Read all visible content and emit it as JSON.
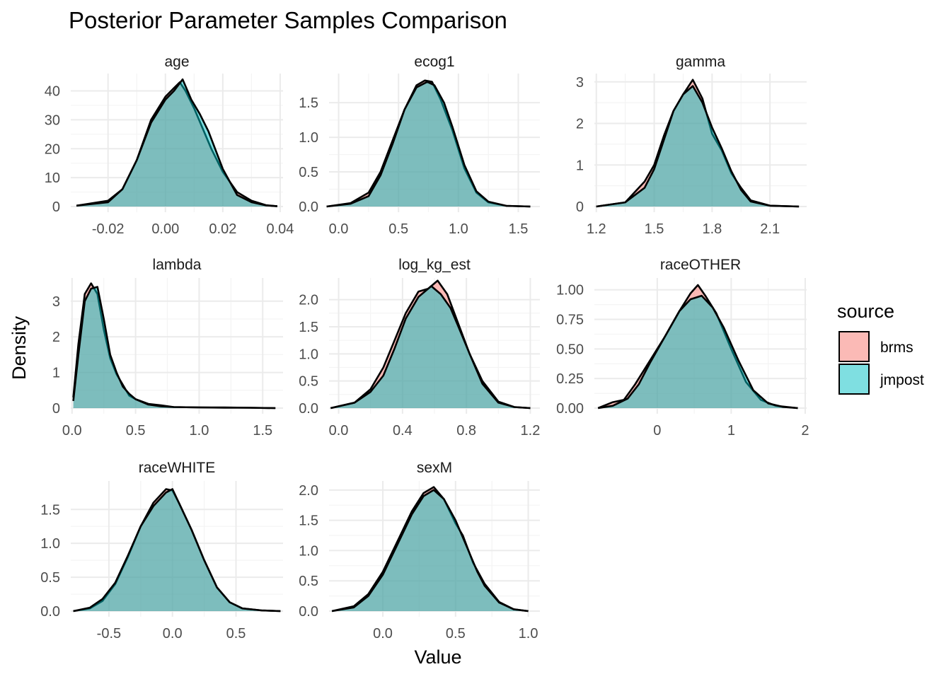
{
  "chart_data": {
    "type": "area",
    "title": "Posterior Parameter Samples Comparison",
    "xlabel": "Value",
    "ylabel": "Density",
    "legend": {
      "title": "source",
      "position": "right",
      "entries": [
        {
          "name": "brms",
          "color": "#F8766D"
        },
        {
          "name": "jmpost",
          "color": "#00BFC4"
        }
      ]
    },
    "grid": true,
    "panels": [
      {
        "name": "age",
        "xlim": [
          -0.033,
          0.041
        ],
        "ylim": [
          0,
          46
        ],
        "xticks": [
          -0.02,
          0.0,
          0.02,
          0.04
        ],
        "xtick_labels": [
          "-0.02",
          "0.00",
          "0.02",
          "0.04"
        ],
        "yticks": [
          0,
          10,
          20,
          30,
          40
        ],
        "ytick_labels": [
          "0",
          "10",
          "20",
          "30",
          "40"
        ],
        "series": [
          {
            "name": "brms",
            "x": [
              -0.031,
              -0.02,
              -0.015,
              -0.01,
              -0.005,
              0.0,
              0.003,
              0.005,
              0.007,
              0.01,
              0.013,
              0.016,
              0.02,
              0.025,
              0.03,
              0.035,
              0.039
            ],
            "y": [
              0.3,
              2,
              6,
              16,
              30,
              38,
              41,
              43,
              40,
              34,
              27,
              20,
              12,
              5,
              2,
              0.5,
              0.1
            ]
          },
          {
            "name": "jmpost",
            "x": [
              -0.031,
              -0.02,
              -0.015,
              -0.01,
              -0.005,
              0.0,
              0.003,
              0.006,
              0.009,
              0.012,
              0.015,
              0.02,
              0.025,
              0.03,
              0.035,
              0.039
            ],
            "y": [
              0.3,
              1.5,
              6,
              16,
              29,
              37,
              40,
              44,
              37,
              32,
              26,
              13,
              4,
              1.5,
              0.4,
              0.1
            ]
          }
        ]
      },
      {
        "name": "ecog1",
        "xlim": [
          -0.08,
          1.68
        ],
        "ylim": [
          0,
          1.92
        ],
        "xticks": [
          0.0,
          0.5,
          1.0,
          1.5
        ],
        "xtick_labels": [
          "0.0",
          "0.5",
          "1.0",
          "1.5"
        ],
        "yticks": [
          0.0,
          0.5,
          1.0,
          1.5
        ],
        "ytick_labels": [
          "0.0",
          "0.5",
          "1.0",
          "1.5"
        ],
        "series": [
          {
            "name": "brms",
            "x": [
              -0.1,
              0.1,
              0.25,
              0.35,
              0.45,
              0.55,
              0.65,
              0.72,
              0.78,
              0.85,
              0.95,
              1.05,
              1.15,
              1.25,
              1.4,
              1.6
            ],
            "y": [
              0.0,
              0.05,
              0.2,
              0.5,
              0.95,
              1.4,
              1.75,
              1.82,
              1.8,
              1.55,
              1.1,
              0.55,
              0.2,
              0.06,
              0.01,
              0.0
            ]
          },
          {
            "name": "jmpost",
            "x": [
              -0.1,
              0.1,
              0.25,
              0.35,
              0.45,
              0.55,
              0.65,
              0.74,
              0.8,
              0.88,
              0.95,
              1.05,
              1.15,
              1.25,
              1.4,
              1.6
            ],
            "y": [
              0.0,
              0.04,
              0.15,
              0.45,
              0.9,
              1.4,
              1.72,
              1.8,
              1.75,
              1.5,
              1.15,
              0.6,
              0.22,
              0.07,
              0.01,
              0.0
            ]
          }
        ]
      },
      {
        "name": "gamma",
        "xlim": [
          1.19,
          2.29
        ],
        "ylim": [
          0,
          3.2
        ],
        "xticks": [
          1.2,
          1.5,
          1.8,
          2.1
        ],
        "xtick_labels": [
          "1.2",
          "1.5",
          "1.8",
          "2.1"
        ],
        "yticks": [
          0,
          1,
          2,
          3
        ],
        "ytick_labels": [
          "0",
          "1",
          "2",
          "3"
        ],
        "series": [
          {
            "name": "brms",
            "x": [
              1.2,
              1.35,
              1.45,
              1.5,
              1.55,
              1.6,
              1.65,
              1.7,
              1.75,
              1.8,
              1.85,
              1.9,
              1.95,
              2.0,
              2.1,
              2.25
            ],
            "y": [
              0.0,
              0.1,
              0.6,
              1.0,
              1.7,
              2.3,
              2.7,
              3.05,
              2.6,
              1.75,
              1.35,
              0.8,
              0.45,
              0.15,
              0.02,
              0.0
            ]
          },
          {
            "name": "jmpost",
            "x": [
              1.2,
              1.35,
              1.45,
              1.5,
              1.55,
              1.6,
              1.65,
              1.7,
              1.75,
              1.8,
              1.85,
              1.9,
              1.95,
              2.0,
              2.1,
              2.25
            ],
            "y": [
              0.0,
              0.1,
              0.45,
              0.9,
              1.6,
              2.3,
              2.7,
              2.9,
              2.5,
              1.9,
              1.4,
              0.85,
              0.4,
              0.12,
              0.02,
              0.0
            ]
          }
        ]
      },
      {
        "name": "lambda",
        "xlim": [
          -0.01,
          1.66
        ],
        "ylim": [
          0,
          3.65
        ],
        "xticks": [
          0.0,
          0.5,
          1.0,
          1.5
        ],
        "xtick_labels": [
          "0.0",
          "0.5",
          "1.0",
          "1.5"
        ],
        "yticks": [
          0,
          1,
          2,
          3
        ],
        "ytick_labels": [
          "0",
          "1",
          "2",
          "3"
        ],
        "series": [
          {
            "name": "brms",
            "x": [
              0.01,
              0.05,
              0.1,
              0.15,
              0.2,
              0.25,
              0.3,
              0.35,
              0.4,
              0.45,
              0.5,
              0.6,
              0.7,
              0.8,
              1.0,
              1.2,
              1.4,
              1.6
            ],
            "y": [
              0.3,
              1.8,
              3.2,
              3.5,
              3.2,
              2.2,
              1.4,
              0.95,
              0.65,
              0.35,
              0.25,
              0.12,
              0.08,
              0.03,
              0.02,
              0.02,
              0.01,
              0.0
            ]
          },
          {
            "name": "jmpost",
            "x": [
              0.01,
              0.05,
              0.1,
              0.15,
              0.2,
              0.25,
              0.3,
              0.35,
              0.4,
              0.45,
              0.5,
              0.6,
              0.7,
              0.8,
              1.0,
              1.2,
              1.4,
              1.6
            ],
            "y": [
              0.2,
              1.5,
              3.0,
              3.35,
              3.4,
              2.5,
              1.5,
              1.0,
              0.6,
              0.4,
              0.25,
              0.1,
              0.05,
              0.03,
              0.02,
              0.01,
              0.01,
              0.0
            ]
          }
        ]
      },
      {
        "name": "log_kg_est",
        "xlim": [
          -0.06,
          1.26
        ],
        "ylim": [
          0,
          2.4
        ],
        "xticks": [
          0.0,
          0.4,
          0.8,
          1.2
        ],
        "xtick_labels": [
          "0.0",
          "0.4",
          "0.8",
          "1.2"
        ],
        "yticks": [
          0.0,
          0.5,
          1.0,
          1.5,
          2.0
        ],
        "ytick_labels": [
          "0.0",
          "0.5",
          "1.0",
          "1.5",
          "2.0"
        ],
        "series": [
          {
            "name": "brms",
            "x": [
              -0.05,
              0.1,
              0.2,
              0.28,
              0.35,
              0.42,
              0.5,
              0.56,
              0.62,
              0.68,
              0.75,
              0.82,
              0.9,
              1.0,
              1.1,
              1.2
            ],
            "y": [
              0.0,
              0.1,
              0.35,
              0.75,
              1.25,
              1.75,
              2.15,
              2.2,
              2.35,
              2.1,
              1.55,
              1.0,
              0.5,
              0.12,
              0.02,
              0.0
            ]
          },
          {
            "name": "jmpost",
            "x": [
              -0.05,
              0.1,
              0.2,
              0.28,
              0.35,
              0.42,
              0.5,
              0.58,
              0.64,
              0.7,
              0.75,
              0.82,
              0.9,
              1.0,
              1.1,
              1.2
            ],
            "y": [
              0.0,
              0.1,
              0.3,
              0.6,
              1.1,
              1.65,
              2.05,
              2.25,
              2.1,
              1.85,
              1.5,
              1.0,
              0.45,
              0.1,
              0.02,
              0.0
            ]
          }
        ]
      },
      {
        "name": "raceOTHER",
        "xlim": [
          -0.85,
          2.02
        ],
        "ylim": [
          0,
          1.1
        ],
        "xticks": [
          0,
          1,
          2
        ],
        "xtick_labels": [
          "0",
          "1",
          "2"
        ],
        "yticks": [
          0.0,
          0.25,
          0.5,
          0.75,
          1.0
        ],
        "ytick_labels": [
          "0.00",
          "0.25",
          "0.50",
          "0.75",
          "1.00"
        ],
        "series": [
          {
            "name": "brms",
            "x": [
              -0.8,
              -0.6,
              -0.45,
              -0.3,
              -0.1,
              0.1,
              0.3,
              0.45,
              0.55,
              0.65,
              0.8,
              1.0,
              1.2,
              1.4,
              1.6,
              1.9
            ],
            "y": [
              0.0,
              0.05,
              0.07,
              0.2,
              0.4,
              0.6,
              0.82,
              0.97,
              1.04,
              0.95,
              0.8,
              0.5,
              0.22,
              0.07,
              0.02,
              0.0
            ]
          },
          {
            "name": "jmpost",
            "x": [
              -0.8,
              -0.6,
              -0.4,
              -0.25,
              -0.1,
              0.1,
              0.3,
              0.45,
              0.6,
              0.75,
              0.9,
              1.1,
              1.3,
              1.5,
              1.7,
              1.9
            ],
            "y": [
              0.0,
              0.02,
              0.08,
              0.2,
              0.38,
              0.6,
              0.82,
              0.92,
              0.95,
              0.85,
              0.68,
              0.4,
              0.15,
              0.04,
              0.01,
              0.0
            ]
          }
        ]
      },
      {
        "name": "raceWHITE",
        "xlim": [
          -0.8,
          0.87
        ],
        "ylim": [
          0,
          1.92
        ],
        "xticks": [
          -0.5,
          0.0,
          0.5
        ],
        "xtick_labels": [
          "-0.5",
          "0.0",
          "0.5"
        ],
        "yticks": [
          0.0,
          0.5,
          1.0,
          1.5
        ],
        "ytick_labels": [
          "0.0",
          "0.5",
          "1.0",
          "1.5"
        ],
        "series": [
          {
            "name": "brms",
            "x": [
              -0.78,
              -0.65,
              -0.55,
              -0.45,
              -0.35,
              -0.25,
              -0.15,
              -0.05,
              0.0,
              0.05,
              0.15,
              0.25,
              0.35,
              0.45,
              0.55,
              0.7,
              0.85
            ],
            "y": [
              0.0,
              0.04,
              0.15,
              0.4,
              0.8,
              1.25,
              1.6,
              1.8,
              1.78,
              1.6,
              1.2,
              0.75,
              0.35,
              0.13,
              0.04,
              0.01,
              0.0
            ]
          },
          {
            "name": "jmpost",
            "x": [
              -0.78,
              -0.65,
              -0.55,
              -0.45,
              -0.35,
              -0.25,
              -0.15,
              -0.05,
              0.0,
              0.05,
              0.15,
              0.25,
              0.35,
              0.45,
              0.55,
              0.7,
              0.85
            ],
            "y": [
              0.0,
              0.05,
              0.18,
              0.42,
              0.82,
              1.25,
              1.55,
              1.75,
              1.8,
              1.6,
              1.2,
              0.75,
              0.35,
              0.13,
              0.04,
              0.01,
              0.0
            ]
          }
        ]
      },
      {
        "name": "sexM",
        "xlim": [
          -0.37,
          1.08
        ],
        "ylim": [
          0,
          2.15
        ],
        "xticks": [
          0.0,
          0.5,
          1.0
        ],
        "xtick_labels": [
          "0.0",
          "0.5",
          "1.0"
        ],
        "yticks": [
          0.0,
          0.5,
          1.0,
          1.5,
          2.0
        ],
        "ytick_labels": [
          "0.0",
          "0.5",
          "1.0",
          "1.5",
          "2.0"
        ],
        "series": [
          {
            "name": "brms",
            "x": [
              -0.35,
              -0.2,
              -0.1,
              0.0,
              0.1,
              0.2,
              0.28,
              0.35,
              0.42,
              0.5,
              0.55,
              0.62,
              0.7,
              0.8,
              0.9,
              1.0
            ],
            "y": [
              0.0,
              0.08,
              0.28,
              0.65,
              1.15,
              1.65,
              1.95,
              2.05,
              1.85,
              1.45,
              1.25,
              0.8,
              0.45,
              0.15,
              0.03,
              0.0
            ]
          },
          {
            "name": "jmpost",
            "x": [
              -0.35,
              -0.2,
              -0.1,
              0.0,
              0.1,
              0.2,
              0.28,
              0.35,
              0.42,
              0.5,
              0.58,
              0.65,
              0.7,
              0.8,
              0.9,
              1.0
            ],
            "y": [
              0.0,
              0.06,
              0.25,
              0.6,
              1.1,
              1.6,
              1.9,
              2.0,
              1.85,
              1.5,
              1.05,
              0.65,
              0.42,
              0.14,
              0.03,
              0.0
            ]
          }
        ]
      }
    ]
  }
}
